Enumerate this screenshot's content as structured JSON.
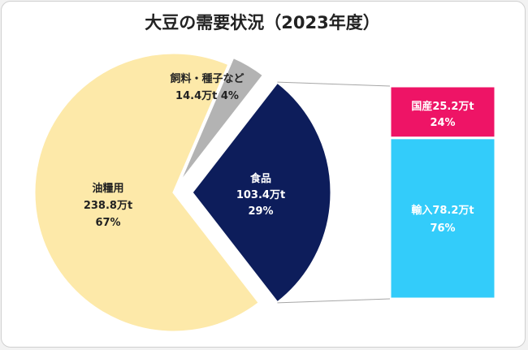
{
  "title": "大豆の需要状況（2023年度）",
  "chart_data": {
    "type": "pie",
    "title": "大豆の需要状況（2023年度）",
    "unit": "万t",
    "slices": [
      {
        "name": "油糧用",
        "value_label": "238.8万t",
        "percent_label": "67%",
        "value": 238.8,
        "percent": 67,
        "color": "#fde9a9"
      },
      {
        "name": "飼料・種子など",
        "value_label": "14.4万t",
        "percent_label": "4%",
        "value": 14.4,
        "percent": 4,
        "color": "#b3b3b3"
      },
      {
        "name": "食品",
        "value_label": "103.4万t",
        "percent_label": "29%",
        "value": 103.4,
        "percent": 29,
        "color": "#0d1d5b"
      }
    ],
    "breakdown": {
      "of": "食品",
      "type": "stacked-bar",
      "segments": [
        {
          "name": "国産",
          "value_label": "25.2万t",
          "percent_label": "24%",
          "value": 25.2,
          "percent": 24,
          "color": "#ee1466"
        },
        {
          "name": "輸入",
          "value_label": "78.2万t",
          "percent_label": "76%",
          "value": 78.2,
          "percent": 76,
          "color": "#33ccfa"
        }
      ]
    }
  }
}
